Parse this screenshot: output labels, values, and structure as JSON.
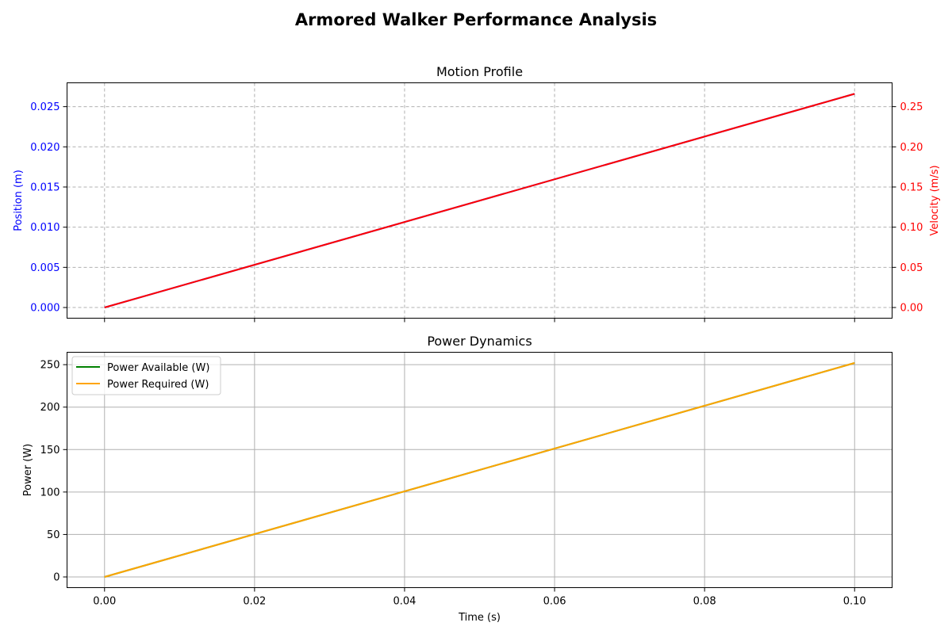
{
  "figure_title": "Armored Walker Performance Analysis",
  "colors": {
    "position": "#0000ff",
    "velocity": "#ff0000",
    "power_available": "#008000",
    "power_required": "#ffa500",
    "grid": "#b0b0b0",
    "axis": "#000000"
  },
  "chart_data": [
    {
      "type": "line",
      "title": "Motion Profile",
      "xlim": [
        -0.005,
        0.105
      ],
      "x_ticks": [
        "0.00",
        "0.02",
        "0.04",
        "0.06",
        "0.08",
        "0.10"
      ],
      "x_tick_labels_shown": false,
      "grid": "dashed",
      "left_axis": {
        "label": "Position (m)",
        "ylim": [
          -0.00133,
          0.02797
        ],
        "ticks": [
          "0.000",
          "0.005",
          "0.010",
          "0.015",
          "0.020",
          "0.025"
        ],
        "tick_values": [
          0,
          0.005,
          0.01,
          0.015,
          0.02,
          0.025
        ]
      },
      "right_axis": {
        "label": "Velocity (m/s)",
        "ylim": [
          -0.0133,
          0.2797
        ],
        "ticks": [
          "0.00",
          "0.05",
          "0.10",
          "0.15",
          "0.20",
          "0.25"
        ],
        "tick_values": [
          0,
          0.05,
          0.1,
          0.15,
          0.2,
          0.25
        ]
      },
      "series": [
        {
          "axis": "left",
          "x": [
            0,
            0.1
          ],
          "y": [
            0,
            0.0266
          ]
        },
        {
          "axis": "right",
          "x": [
            0,
            0.1
          ],
          "y": [
            0,
            0.266
          ]
        }
      ]
    },
    {
      "type": "line",
      "title": "Power Dynamics",
      "xlabel": "Time (s)",
      "ylabel": "Power (W)",
      "xlim": [
        -0.005,
        0.105
      ],
      "x_ticks": [
        "0.00",
        "0.02",
        "0.04",
        "0.06",
        "0.08",
        "0.10"
      ],
      "x_tick_values": [
        0,
        0.02,
        0.04,
        0.06,
        0.08,
        0.1
      ],
      "ylim": [
        -12.6,
        264.6
      ],
      "y_ticks": [
        "0",
        "50",
        "100",
        "150",
        "200",
        "250"
      ],
      "y_tick_values": [
        0,
        50,
        100,
        150,
        200,
        250
      ],
      "grid": "solid",
      "legend_position": "upper-left",
      "series": [
        {
          "name": "Power Available (W)",
          "x": [
            0,
            0.1
          ],
          "y": [
            0,
            252
          ]
        },
        {
          "name": "Power Required (W)",
          "x": [
            0,
            0.1
          ],
          "y": [
            0,
            252
          ]
        }
      ]
    }
  ]
}
